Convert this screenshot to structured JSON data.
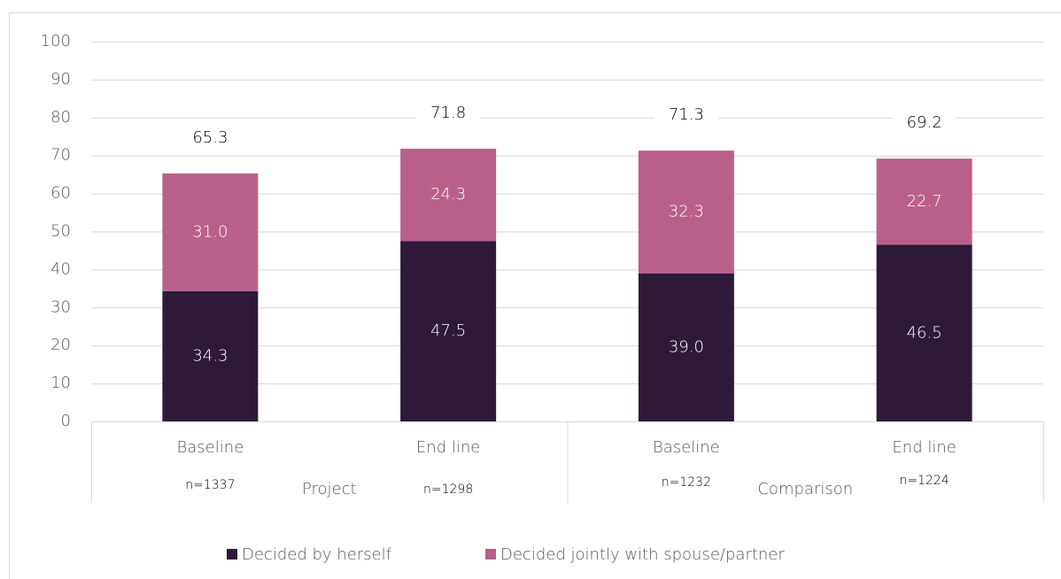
{
  "chart_data": {
    "type": "stacked_bar",
    "categories": [
      "Baseline",
      "End line",
      "Baseline",
      "End line"
    ],
    "n_labels": [
      "n=1337",
      "n=1298",
      "n=1232",
      "n=1224"
    ],
    "groups": [
      "Project",
      "Comparison"
    ],
    "series": [
      {
        "name": "Decided by herself",
        "color": "#2e1a38",
        "values": [
          34.3,
          47.5,
          39.0,
          46.5
        ],
        "value_labels": [
          "34.3",
          "47.5",
          "39.0",
          "46.5"
        ]
      },
      {
        "name": "Decided jointly with spouse/partner",
        "color": "#b9608a",
        "values": [
          31.0,
          24.3,
          32.3,
          22.7
        ],
        "value_labels": [
          "31.0",
          "24.3",
          "32.3",
          "22.7"
        ]
      }
    ],
    "totals": [
      65.3,
      71.8,
      71.3,
      69.2
    ],
    "ylim": [
      0,
      100
    ],
    "yticks": [
      0,
      10,
      20,
      30,
      40,
      50,
      60,
      70,
      80,
      90,
      100
    ],
    "grid": true,
    "legend": "bottom"
  }
}
